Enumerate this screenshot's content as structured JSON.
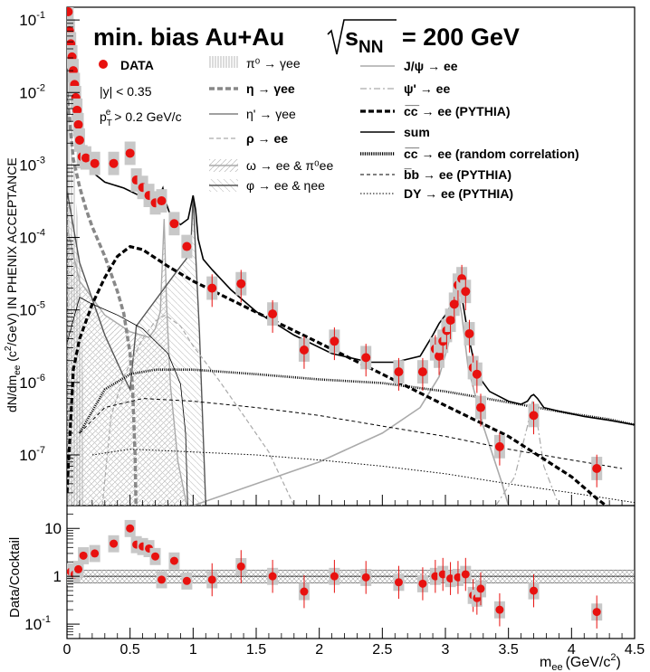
{
  "chart_data": {
    "type": "line",
    "title": "min. bias Au+Au √s_NN = 200 GeV",
    "title_parts": {
      "main": "min. bias Au+Au",
      "sqrt": "√",
      "s": "s",
      "sub": "NN",
      "eq": "= 200 GeV"
    },
    "xlabel": "m_ee (GeV/c²)",
    "xlabel_parts": {
      "m": "m",
      "ee": "ee",
      "unit": "(GeV/c",
      "sup": "2",
      "close": ")"
    },
    "ylabel": "dN/dm_ee (c²/GeV) IN PHENIX ACCEPTANCE",
    "ylabel_parts": {
      "a": "dN/dm",
      "b": "ee",
      "c": " (c",
      "d": "2",
      "e": "/GeV) IN PHENIX ACCEPTANCE"
    },
    "ylabel_ratio": "Data/Cocktail",
    "xlim": [
      0,
      4.5
    ],
    "ylim": [
      2e-08,
      0.15
    ],
    "ylim_ratio": [
      0.05,
      30
    ],
    "x_ticks": [
      "0",
      "0.5",
      "1",
      "1.5",
      "2",
      "2.5",
      "3",
      "3.5",
      "4",
      "4.5"
    ],
    "y_ticks": [
      {
        "base": "10",
        "exp": "-7"
      },
      {
        "base": "10",
        "exp": "-6"
      },
      {
        "base": "10",
        "exp": "-5"
      },
      {
        "base": "10",
        "exp": "-4"
      },
      {
        "base": "10",
        "exp": "-3"
      },
      {
        "base": "10",
        "exp": "-2"
      },
      {
        "base": "10",
        "exp": "-1"
      }
    ],
    "ratio_y_ticks": [
      {
        "base": "10",
        "exp": "-1"
      },
      {
        "base": "1",
        "exp": ""
      },
      {
        "base": "10",
        "exp": ""
      }
    ],
    "cuts": {
      "y": "|y| < 0.35",
      "pt_p": "p",
      "pt_sub": "T",
      "pt_sup": "e",
      "pt_rest": " > 0.2 GeV/c"
    },
    "legend_data": "DATA",
    "legend_cocktail": [
      {
        "label": "π⁰ → γee",
        "style": "hatch-v"
      },
      {
        "label": "η → γee",
        "style": "thick-dash"
      },
      {
        "label": "η' → γee",
        "style": "thin"
      },
      {
        "label": "ρ → ee",
        "style": "gray-dash"
      },
      {
        "label": "ω → ee & π⁰ee",
        "style": "hatch-d"
      },
      {
        "label": "φ → ee & ηee",
        "style": "hatch-d2"
      }
    ],
    "legend_sources": [
      {
        "label": "J/ψ → ee",
        "style": "gray"
      },
      {
        "label": "ψ' → ee",
        "style": "gray-dashdot"
      },
      {
        "label": "c̅c̅ → ee (PYTHIA)",
        "style": "thick-dash"
      },
      {
        "label": "sum",
        "style": "solid"
      },
      {
        "label": "c̅c̅ → ee (random correlation)",
        "style": "dotted-thick"
      },
      {
        "label": "b̅b → ee (PYTHIA)",
        "style": "dash"
      },
      {
        "label": "DY → ee (PYTHIA)",
        "style": "dot"
      }
    ],
    "data_points": {
      "x": [
        0.01,
        0.02,
        0.03,
        0.04,
        0.05,
        0.06,
        0.07,
        0.08,
        0.09,
        0.1,
        0.12,
        0.15,
        0.22,
        0.37,
        0.5,
        0.55,
        0.6,
        0.65,
        0.7,
        0.75,
        0.85,
        0.95,
        1.15,
        1.38,
        1.63,
        1.88,
        2.12,
        2.37,
        2.63,
        2.82,
        2.92,
        2.95,
        2.98,
        3.01,
        3.04,
        3.07,
        3.1,
        3.13,
        3.16,
        3.19,
        3.22,
        3.25,
        3.28,
        3.43,
        3.7,
        4.2
      ],
      "y": [
        0.13,
        0.071,
        0.047,
        0.031,
        0.02,
        0.0129,
        0.0085,
        0.0057,
        0.0036,
        0.0022,
        0.0013,
        0.00125,
        0.00105,
        0.00105,
        0.00145,
        0.00062,
        0.00049,
        0.00038,
        0.0003,
        0.00032,
        0.000155,
        7.5e-05,
        2e-05,
        2.3e-05,
        8.8e-06,
        2.8e-06,
        3.7e-06,
        2.2e-06,
        1.4e-06,
        1.4e-06,
        2.9e-06,
        2.3e-06,
        3.7e-06,
        5.2e-06,
        7.2e-06,
        1.2e-05,
        2.2e-05,
        2.7e-05,
        1.8e-05,
        4.7e-06,
        1.6e-06,
        1.3e-06,
        4.5e-07,
        1.3e-07,
        3.5e-07,
        6.5e-08
      ]
    },
    "ratio_points": {
      "x": [
        0.01,
        0.03,
        0.06,
        0.09,
        0.13,
        0.22,
        0.37,
        0.5,
        0.55,
        0.6,
        0.65,
        0.7,
        0.75,
        0.85,
        0.95,
        1.15,
        1.38,
        1.63,
        1.88,
        2.12,
        2.37,
        2.63,
        2.82,
        2.92,
        2.98,
        3.04,
        3.1,
        3.16,
        3.22,
        3.25,
        3.28,
        3.43,
        3.7,
        4.2
      ],
      "y": [
        1.0,
        1.25,
        1.1,
        1.4,
        2.7,
        3.0,
        4.8,
        10.0,
        4.6,
        4.2,
        3.8,
        2.6,
        0.85,
        2.1,
        0.8,
        0.85,
        1.6,
        1.0,
        0.48,
        1.0,
        0.95,
        0.75,
        0.7,
        1.0,
        1.1,
        0.9,
        0.95,
        1.1,
        0.4,
        0.35,
        0.55,
        0.2,
        0.5,
        0.18
      ]
    },
    "sum": {
      "x": [
        0.0,
        0.02,
        0.05,
        0.08,
        0.12,
        0.2,
        0.3,
        0.45,
        0.6,
        0.7,
        0.74,
        0.76,
        0.78,
        0.82,
        0.9,
        0.96,
        1.0,
        1.02,
        1.04,
        1.08,
        1.15,
        1.3,
        1.5,
        1.8,
        2.1,
        2.4,
        2.6,
        2.8,
        2.9,
        2.95,
        3.0,
        3.05,
        3.08,
        3.1,
        3.12,
        3.14,
        3.18,
        3.25,
        3.35,
        3.5,
        3.6,
        3.65,
        3.68,
        3.7,
        3.73,
        3.78,
        3.9,
        4.1,
        4.3,
        4.5
      ],
      "y": [
        0.12,
        0.035,
        0.01,
        0.004,
        0.0017,
        0.0008,
        0.00058,
        0.00048,
        0.00036,
        0.00033,
        0.0004,
        0.00048,
        0.00032,
        0.0002,
        0.00015,
        0.00018,
        0.00038,
        0.00024,
        9.5e-05,
        5e-05,
        3.6e-05,
        1.9e-05,
        9.5e-06,
        4.5e-06,
        2.5e-06,
        1.9e-06,
        1.9e-06,
        2.3e-06,
        4.5e-06,
        6.5e-06,
        8.5e-06,
        1.2e-05,
        1.7e-05,
        2e-05,
        1.8e-05,
        1.2e-05,
        4.5e-06,
        1.3e-06,
        7.5e-07,
        5.5e-07,
        5e-07,
        5.5e-07,
        6.5e-07,
        6.8e-07,
        6e-07,
        4.5e-07,
        4e-07,
        3.4e-07,
        3e-07,
        2.6e-07
      ]
    },
    "ccbar_pythia": {
      "x": [
        0.0,
        0.05,
        0.1,
        0.2,
        0.3,
        0.4,
        0.5,
        0.6,
        0.8,
        1.0,
        1.5,
        2.0,
        2.5,
        3.0,
        3.5,
        4.0,
        4.2,
        4.5
      ],
      "y": [
        3e-08,
        1.5e-06,
        4e-06,
        1.2e-05,
        2.8e-05,
        5.5e-05,
        7.5e-05,
        6.8e-05,
        4e-05,
        2.5e-05,
        9.3e-06,
        3.5e-06,
        1.3e-06,
        4.8e-07,
        1.8e-07,
        5e-08,
        2.5e-08,
        1e-08
      ]
    },
    "ccbar_random": {
      "x": [
        0.1,
        0.3,
        0.5,
        0.7,
        1.0,
        1.5,
        2.0,
        2.5,
        3.0,
        3.5,
        4.0,
        4.3,
        4.5
      ],
      "y": [
        2e-07,
        8e-07,
        1.3e-06,
        1.5e-06,
        1.5e-06,
        1.3e-06,
        1.1e-06,
        9.8e-07,
        7.5e-07,
        5.3e-07,
        3.7e-07,
        3.1e-07,
        2.6e-07
      ]
    },
    "bbbar_pythia": {
      "x": [
        0.1,
        0.3,
        0.6,
        1.0,
        1.5,
        2.0,
        2.5,
        3.0,
        3.5,
        4.0,
        4.4
      ],
      "y": [
        2e-07,
        4.5e-07,
        6e-07,
        5.5e-07,
        4.5e-07,
        3.5e-07,
        2.5e-07,
        1.8e-07,
        1.2e-07,
        8.5e-08,
        6.5e-08
      ]
    },
    "dy_pythia": {
      "x": [
        0.2,
        0.5,
        1.0,
        1.5,
        2.0,
        2.5,
        3.0,
        3.5,
        4.0,
        4.5
      ],
      "y": [
        1e-07,
        1.2e-07,
        1.1e-07,
        1e-07,
        8.5e-08,
        7e-08,
        5.5e-08,
        4e-08,
        3e-08,
        2.2e-08
      ]
    },
    "eta_dalitz": {
      "x": [
        0.0,
        0.05,
        0.1,
        0.15,
        0.2,
        0.3,
        0.4,
        0.45,
        0.5,
        0.52,
        0.54,
        0.547
      ],
      "y": [
        0.01,
        0.0012,
        0.0005,
        0.00025,
        0.00014,
        5.5e-05,
        1.8e-05,
        9e-06,
        2.5e-06,
        8e-07,
        1e-07,
        2e-08
      ]
    },
    "eta_prime": {
      "x": [
        0.0,
        0.1,
        0.2,
        0.4,
        0.6,
        0.8,
        0.9,
        0.94,
        0.957
      ],
      "y": [
        3.5e-06,
        1.5e-05,
        1.2e-05,
        8.5e-06,
        5.5e-06,
        2.5e-06,
        9.5e-07,
        2e-07,
        2e-08
      ]
    },
    "rho": {
      "x": [
        0.28,
        0.35,
        0.45,
        0.6,
        0.7,
        0.78,
        0.9,
        1.0,
        1.2,
        1.4,
        1.6,
        1.8
      ],
      "y": [
        2e-08,
        3.5e-07,
        1.2e-06,
        4e-06,
        7e-06,
        8.5e-06,
        6e-06,
        3.2e-06,
        1.1e-06,
        3.5e-07,
        1.1e-07,
        2e-08
      ]
    },
    "jpsi": {
      "x": [
        1.0,
        1.5,
        2.0,
        2.5,
        2.8,
        2.95,
        3.02,
        3.07,
        3.1,
        3.13,
        3.18,
        3.3,
        3.45,
        3.5
      ],
      "y": [
        2e-08,
        4e-08,
        8e-08,
        2e-07,
        4.5e-07,
        1.2e-06,
        3.2e-06,
        9e-06,
        1.7e-05,
        8.5e-06,
        1.6e-06,
        2.5e-07,
        4e-08,
        2e-08
      ]
    },
    "psiprime": {
      "x": [
        3.4,
        3.55,
        3.65,
        3.69,
        3.72,
        3.78,
        3.9
      ],
      "y": [
        2e-08,
        5e-08,
        2.5e-07,
        5.5e-07,
        3.5e-07,
        7e-08,
        2e-08
      ]
    },
    "omega": {
      "x": [
        0.0,
        0.1,
        0.3,
        0.5,
        0.65,
        0.7,
        0.74,
        0.77,
        0.79,
        0.82,
        0.88,
        0.95
      ],
      "y": [
        0.00014,
        2.5e-05,
        8.5e-06,
        5e-06,
        4.2e-06,
        5.5e-06,
        9.5e-06,
        0.00018,
        1.1e-05,
        9e-07,
        8e-08,
        2e-08
      ]
    },
    "phi": {
      "x": [
        0.0,
        0.1,
        0.3,
        0.45,
        0.5,
        0.55,
        0.9,
        0.98,
        1.0,
        1.02,
        1.05,
        1.1
      ],
      "y": [
        0.00045,
        4.5e-05,
        4.5e-06,
        1.2e-06,
        8e-07,
        6e-06,
        4e-05,
        6e-05,
        0.00038,
        6e-05,
        5e-06,
        2e-08
      ]
    },
    "pi0_band": {
      "x": [
        0.0,
        0.03,
        0.06,
        0.09,
        0.12,
        0.135
      ],
      "y": [
        0.09,
        0.006,
        0.0008,
        0.00012,
        8e-06,
        2e-08
      ]
    },
    "ratio_band": {
      "low": 0.72,
      "high": 1.35
    }
  }
}
